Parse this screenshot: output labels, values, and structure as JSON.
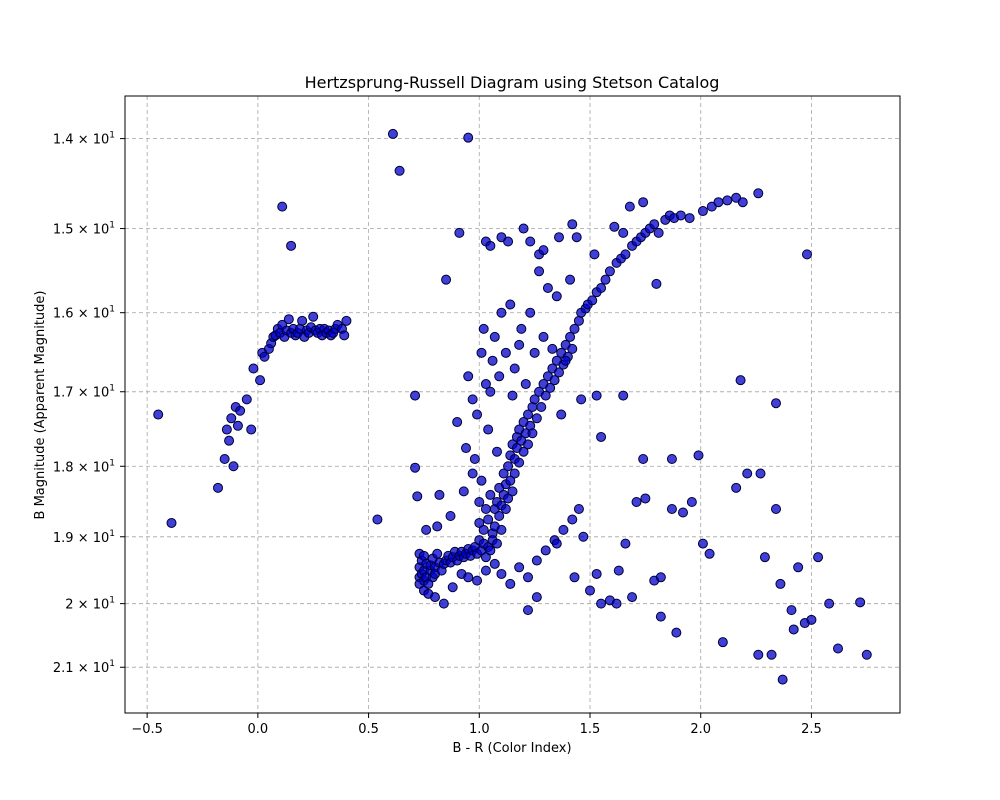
{
  "chart_data": {
    "type": "scatter",
    "title": "Hertzsprung-Russell Diagram using Stetson Catalog",
    "xlabel": "B - R (Color Index)",
    "ylabel": "B Magnitude (Apparent Magnitude)",
    "xlim": [
      -0.6,
      2.9
    ],
    "ylim": [
      21.75,
      13.55
    ],
    "y_scale": "log",
    "y_inverted": true,
    "grid": true,
    "x_ticks": [
      -0.5,
      0.0,
      0.5,
      1.0,
      1.5,
      2.0,
      2.5
    ],
    "x_tick_labels": [
      "−0.5",
      "0.0",
      "0.5",
      "1.0",
      "1.5",
      "2.0",
      "2.5"
    ],
    "y_ticks": [
      14,
      15,
      16,
      17,
      18,
      19,
      20,
      21
    ],
    "y_tick_labels": [
      {
        "base": "1.4 × 10",
        "exp": "1"
      },
      {
        "base": "1.5 × 10",
        "exp": "1"
      },
      {
        "base": "1.6 × 10",
        "exp": "1"
      },
      {
        "base": "1.7 × 10",
        "exp": "1"
      },
      {
        "base": "1.8 × 10",
        "exp": "1"
      },
      {
        "base": "1.9 × 10",
        "exp": "1"
      },
      {
        "base": "2 × 10",
        "exp": "1"
      },
      {
        "base": "2.1 × 10",
        "exp": "1"
      }
    ],
    "marker_color": "#0000cc",
    "marker_edge": "#000033",
    "grid_color": "#b0b0b0",
    "points": [
      [
        -0.45,
        17.3
      ],
      [
        -0.39,
        18.8
      ],
      [
        -0.18,
        18.3
      ],
      [
        -0.15,
        17.9
      ],
      [
        -0.14,
        17.5
      ],
      [
        -0.13,
        17.65
      ],
      [
        -0.12,
        17.35
      ],
      [
        -0.11,
        18.0
      ],
      [
        -0.1,
        17.2
      ],
      [
        -0.09,
        17.45
      ],
      [
        -0.08,
        17.25
      ],
      [
        -0.05,
        17.1
      ],
      [
        -0.03,
        17.5
      ],
      [
        -0.02,
        16.7
      ],
      [
        0.01,
        16.85
      ],
      [
        0.02,
        16.5
      ],
      [
        0.03,
        16.55
      ],
      [
        0.05,
        16.45
      ],
      [
        0.06,
        16.38
      ],
      [
        0.07,
        16.3
      ],
      [
        0.08,
        16.28
      ],
      [
        0.09,
        16.2
      ],
      [
        0.1,
        16.25
      ],
      [
        0.11,
        16.15
      ],
      [
        0.12,
        16.3
      ],
      [
        0.13,
        16.22
      ],
      [
        0.14,
        16.08
      ],
      [
        0.15,
        16.25
      ],
      [
        0.16,
        16.2
      ],
      [
        0.17,
        16.28
      ],
      [
        0.18,
        16.25
      ],
      [
        0.19,
        16.2
      ],
      [
        0.2,
        16.1
      ],
      [
        0.21,
        16.3
      ],
      [
        0.22,
        16.22
      ],
      [
        0.23,
        16.25
      ],
      [
        0.24,
        16.18
      ],
      [
        0.25,
        16.05
      ],
      [
        0.26,
        16.22
      ],
      [
        0.27,
        16.25
      ],
      [
        0.28,
        16.2
      ],
      [
        0.29,
        16.28
      ],
      [
        0.3,
        16.2
      ],
      [
        0.31,
        16.25
      ],
      [
        0.32,
        16.22
      ],
      [
        0.33,
        16.28
      ],
      [
        0.34,
        16.25
      ],
      [
        0.35,
        16.2
      ],
      [
        0.36,
        16.15
      ],
      [
        0.38,
        16.2
      ],
      [
        0.39,
        16.28
      ],
      [
        0.4,
        16.1
      ],
      [
        0.11,
        14.75
      ],
      [
        0.15,
        15.2
      ],
      [
        0.54,
        18.75
      ],
      [
        0.61,
        13.95
      ],
      [
        0.64,
        14.35
      ],
      [
        0.71,
        17.05
      ],
      [
        0.71,
        18.02
      ],
      [
        0.72,
        18.42
      ],
      [
        0.95,
        13.99
      ],
      [
        0.73,
        19.25
      ],
      [
        0.73,
        19.45
      ],
      [
        0.73,
        19.6
      ],
      [
        0.73,
        19.7
      ],
      [
        0.74,
        19.35
      ],
      [
        0.74,
        19.55
      ],
      [
        0.75,
        19.28
      ],
      [
        0.75,
        19.5
      ],
      [
        0.75,
        19.65
      ],
      [
        0.75,
        19.8
      ],
      [
        0.76,
        19.4
      ],
      [
        0.76,
        19.6
      ],
      [
        0.77,
        19.7
      ],
      [
        0.77,
        19.85
      ],
      [
        0.78,
        19.5
      ],
      [
        0.78,
        19.42
      ],
      [
        0.79,
        19.32
      ],
      [
        0.79,
        19.6
      ],
      [
        0.8,
        19.45
      ],
      [
        0.8,
        19.55
      ],
      [
        0.81,
        19.25
      ],
      [
        0.82,
        19.38
      ],
      [
        0.83,
        19.5
      ],
      [
        0.84,
        19.4
      ],
      [
        0.85,
        19.35
      ],
      [
        0.86,
        19.28
      ],
      [
        0.87,
        19.38
      ],
      [
        0.88,
        19.3
      ],
      [
        0.89,
        19.22
      ],
      [
        0.9,
        19.35
      ],
      [
        0.91,
        19.28
      ],
      [
        0.92,
        19.22
      ],
      [
        0.93,
        19.3
      ],
      [
        0.94,
        19.25
      ],
      [
        0.95,
        19.18
      ],
      [
        0.96,
        19.28
      ],
      [
        0.97,
        19.2
      ],
      [
        0.98,
        19.15
      ],
      [
        0.99,
        19.25
      ],
      [
        1.0,
        19.05
      ],
      [
        1.0,
        18.8
      ],
      [
        1.0,
        18.5
      ],
      [
        1.01,
        19.2
      ],
      [
        1.01,
        18.2
      ],
      [
        1.02,
        19.1
      ],
      [
        1.02,
        18.9
      ],
      [
        1.03,
        19.3
      ],
      [
        1.03,
        18.6
      ],
      [
        1.04,
        19.15
      ],
      [
        1.04,
        18.75
      ],
      [
        1.05,
        19.2
      ],
      [
        1.05,
        18.4
      ],
      [
        1.06,
        18.95
      ],
      [
        1.06,
        19.05
      ],
      [
        1.07,
        18.6
      ],
      [
        1.07,
        18.85
      ],
      [
        1.08,
        18.5
      ],
      [
        1.08,
        19.1
      ],
      [
        1.09,
        18.7
      ],
      [
        1.09,
        18.3
      ],
      [
        1.1,
        18.55
      ],
      [
        1.1,
        18.9
      ],
      [
        1.11,
        18.4
      ],
      [
        1.11,
        18.1
      ],
      [
        1.12,
        18.6
      ],
      [
        1.12,
        18.25
      ],
      [
        1.13,
        18.45
      ],
      [
        1.13,
        18.0
      ],
      [
        1.14,
        17.85
      ],
      [
        1.14,
        18.2
      ],
      [
        1.15,
        18.35
      ],
      [
        1.15,
        17.7
      ],
      [
        1.16,
        17.9
      ],
      [
        1.16,
        18.1
      ],
      [
        1.17,
        17.75
      ],
      [
        1.17,
        17.6
      ],
      [
        1.18,
        17.95
      ],
      [
        1.18,
        17.5
      ],
      [
        1.19,
        17.65
      ],
      [
        1.2,
        17.8
      ],
      [
        1.2,
        17.4
      ],
      [
        1.21,
        17.55
      ],
      [
        1.22,
        17.3
      ],
      [
        1.22,
        17.7
      ],
      [
        1.23,
        17.45
      ],
      [
        1.24,
        17.2
      ],
      [
        1.24,
        17.55
      ],
      [
        1.25,
        17.1
      ],
      [
        1.26,
        17.35
      ],
      [
        1.27,
        17.0
      ],
      [
        1.28,
        17.2
      ],
      [
        1.29,
        16.9
      ],
      [
        1.3,
        17.05
      ],
      [
        1.31,
        16.8
      ],
      [
        1.32,
        16.95
      ],
      [
        1.33,
        16.7
      ],
      [
        1.34,
        16.85
      ],
      [
        1.35,
        16.6
      ],
      [
        1.36,
        16.75
      ],
      [
        1.37,
        16.5
      ],
      [
        1.38,
        16.65
      ],
      [
        1.39,
        16.4
      ],
      [
        1.4,
        16.55
      ],
      [
        1.41,
        16.3
      ],
      [
        1.42,
        16.45
      ],
      [
        1.43,
        16.2
      ],
      [
        1.45,
        16.1
      ],
      [
        1.46,
        16.0
      ],
      [
        1.48,
        15.95
      ],
      [
        1.49,
        15.9
      ],
      [
        1.51,
        15.85
      ],
      [
        1.53,
        15.75
      ],
      [
        1.55,
        15.7
      ],
      [
        1.57,
        15.6
      ],
      [
        1.59,
        15.5
      ],
      [
        1.62,
        15.4
      ],
      [
        1.64,
        15.35
      ],
      [
        1.66,
        15.3
      ],
      [
        1.69,
        15.2
      ],
      [
        1.71,
        15.15
      ],
      [
        1.73,
        15.1
      ],
      [
        1.75,
        15.05
      ],
      [
        1.77,
        15.0
      ],
      [
        1.79,
        14.95
      ],
      [
        1.81,
        15.05
      ],
      [
        1.84,
        14.9
      ],
      [
        1.86,
        14.85
      ],
      [
        1.88,
        14.88
      ],
      [
        1.91,
        14.85
      ],
      [
        1.95,
        14.88
      ],
      [
        2.01,
        14.8
      ],
      [
        2.05,
        14.75
      ],
      [
        2.08,
        14.7
      ],
      [
        2.12,
        14.68
      ],
      [
        2.16,
        14.65
      ],
      [
        2.19,
        14.7
      ],
      [
        2.26,
        14.6
      ],
      [
        1.68,
        14.75
      ],
      [
        1.74,
        14.7
      ],
      [
        0.85,
        15.6
      ],
      [
        0.91,
        15.05
      ],
      [
        1.03,
        15.15
      ],
      [
        1.05,
        15.2
      ],
      [
        1.1,
        15.1
      ],
      [
        1.13,
        15.15
      ],
      [
        1.2,
        15.0
      ],
      [
        1.23,
        15.15
      ],
      [
        1.27,
        15.3
      ],
      [
        1.29,
        15.25
      ],
      [
        1.36,
        15.1
      ],
      [
        1.42,
        14.95
      ],
      [
        1.44,
        15.1
      ],
      [
        1.52,
        15.3
      ],
      [
        1.61,
        14.98
      ],
      [
        1.65,
        15.05
      ],
      [
        1.8,
        15.65
      ],
      [
        2.48,
        15.3
      ],
      [
        0.95,
        16.8
      ],
      [
        0.97,
        17.1
      ],
      [
        0.99,
        17.3
      ],
      [
        1.01,
        16.5
      ],
      [
        1.02,
        16.2
      ],
      [
        1.03,
        16.9
      ],
      [
        1.04,
        17.5
      ],
      [
        1.05,
        17.0
      ],
      [
        1.06,
        16.6
      ],
      [
        1.07,
        16.3
      ],
      [
        1.08,
        17.8
      ],
      [
        1.09,
        16.8
      ],
      [
        1.1,
        16.0
      ],
      [
        1.12,
        16.5
      ],
      [
        1.14,
        15.9
      ],
      [
        1.15,
        17.05
      ],
      [
        1.16,
        16.7
      ],
      [
        1.18,
        16.4
      ],
      [
        1.19,
        16.2
      ],
      [
        1.21,
        16.9
      ],
      [
        1.23,
        16.0
      ],
      [
        1.25,
        16.5
      ],
      [
        1.27,
        15.5
      ],
      [
        1.29,
        16.3
      ],
      [
        1.31,
        15.7
      ],
      [
        1.33,
        16.45
      ],
      [
        1.35,
        15.8
      ],
      [
        1.37,
        17.3
      ],
      [
        1.39,
        16.6
      ],
      [
        1.41,
        15.6
      ],
      [
        1.46,
        17.1
      ],
      [
        1.53,
        17.05
      ],
      [
        1.55,
        17.6
      ],
      [
        1.65,
        17.05
      ],
      [
        1.74,
        17.9
      ],
      [
        1.87,
        17.9
      ],
      [
        1.99,
        17.85
      ],
      [
        2.18,
        16.85
      ],
      [
        2.34,
        17.15
      ],
      [
        0.9,
        17.4
      ],
      [
        0.94,
        17.75
      ],
      [
        0.97,
        18.1
      ],
      [
        0.93,
        18.35
      ],
      [
        0.98,
        17.9
      ],
      [
        0.8,
        19.9
      ],
      [
        0.84,
        20.0
      ],
      [
        0.88,
        19.75
      ],
      [
        0.92,
        19.55
      ],
      [
        0.95,
        19.6
      ],
      [
        0.99,
        19.65
      ],
      [
        1.03,
        19.5
      ],
      [
        1.07,
        19.4
      ],
      [
        1.1,
        19.55
      ],
      [
        1.14,
        19.7
      ],
      [
        1.18,
        19.45
      ],
      [
        1.22,
        19.6
      ],
      [
        1.26,
        19.35
      ],
      [
        1.3,
        19.2
      ],
      [
        1.34,
        19.05
      ],
      [
        1.38,
        18.9
      ],
      [
        1.42,
        18.75
      ],
      [
        1.45,
        18.6
      ],
      [
        1.47,
        19.0
      ],
      [
        1.53,
        19.55
      ],
      [
        1.55,
        20.0
      ],
      [
        1.59,
        19.95
      ],
      [
        1.63,
        19.5
      ],
      [
        1.66,
        19.1
      ],
      [
        1.71,
        18.5
      ],
      [
        1.75,
        18.45
      ],
      [
        1.79,
        19.65
      ],
      [
        1.82,
        19.6
      ],
      [
        1.87,
        18.6
      ],
      [
        1.92,
        18.65
      ],
      [
        1.96,
        18.5
      ],
      [
        2.01,
        19.1
      ],
      [
        2.04,
        19.25
      ],
      [
        2.16,
        18.3
      ],
      [
        2.21,
        18.1
      ],
      [
        2.27,
        18.1
      ],
      [
        2.29,
        19.3
      ],
      [
        2.34,
        18.6
      ],
      [
        2.36,
        19.7
      ],
      [
        2.41,
        20.1
      ],
      [
        2.44,
        19.45
      ],
      [
        2.47,
        20.3
      ],
      [
        2.5,
        20.25
      ],
      [
        2.53,
        19.3
      ],
      [
        2.58,
        20.0
      ],
      [
        2.62,
        20.7
      ],
      [
        2.72,
        19.98
      ],
      [
        2.75,
        20.8
      ],
      [
        2.26,
        20.8
      ],
      [
        2.32,
        20.8
      ],
      [
        2.37,
        21.2
      ],
      [
        2.42,
        20.4
      ],
      [
        1.62,
        20.0
      ],
      [
        1.69,
        19.9
      ],
      [
        1.82,
        20.2
      ],
      [
        1.89,
        20.45
      ],
      [
        2.1,
        20.6
      ],
      [
        1.5,
        19.8
      ],
      [
        1.43,
        19.6
      ],
      [
        1.35,
        19.1
      ],
      [
        1.26,
        19.9
      ],
      [
        1.22,
        20.1
      ],
      [
        0.82,
        18.4
      ],
      [
        0.76,
        18.9
      ],
      [
        0.87,
        18.7
      ],
      [
        0.81,
        18.85
      ]
    ]
  }
}
